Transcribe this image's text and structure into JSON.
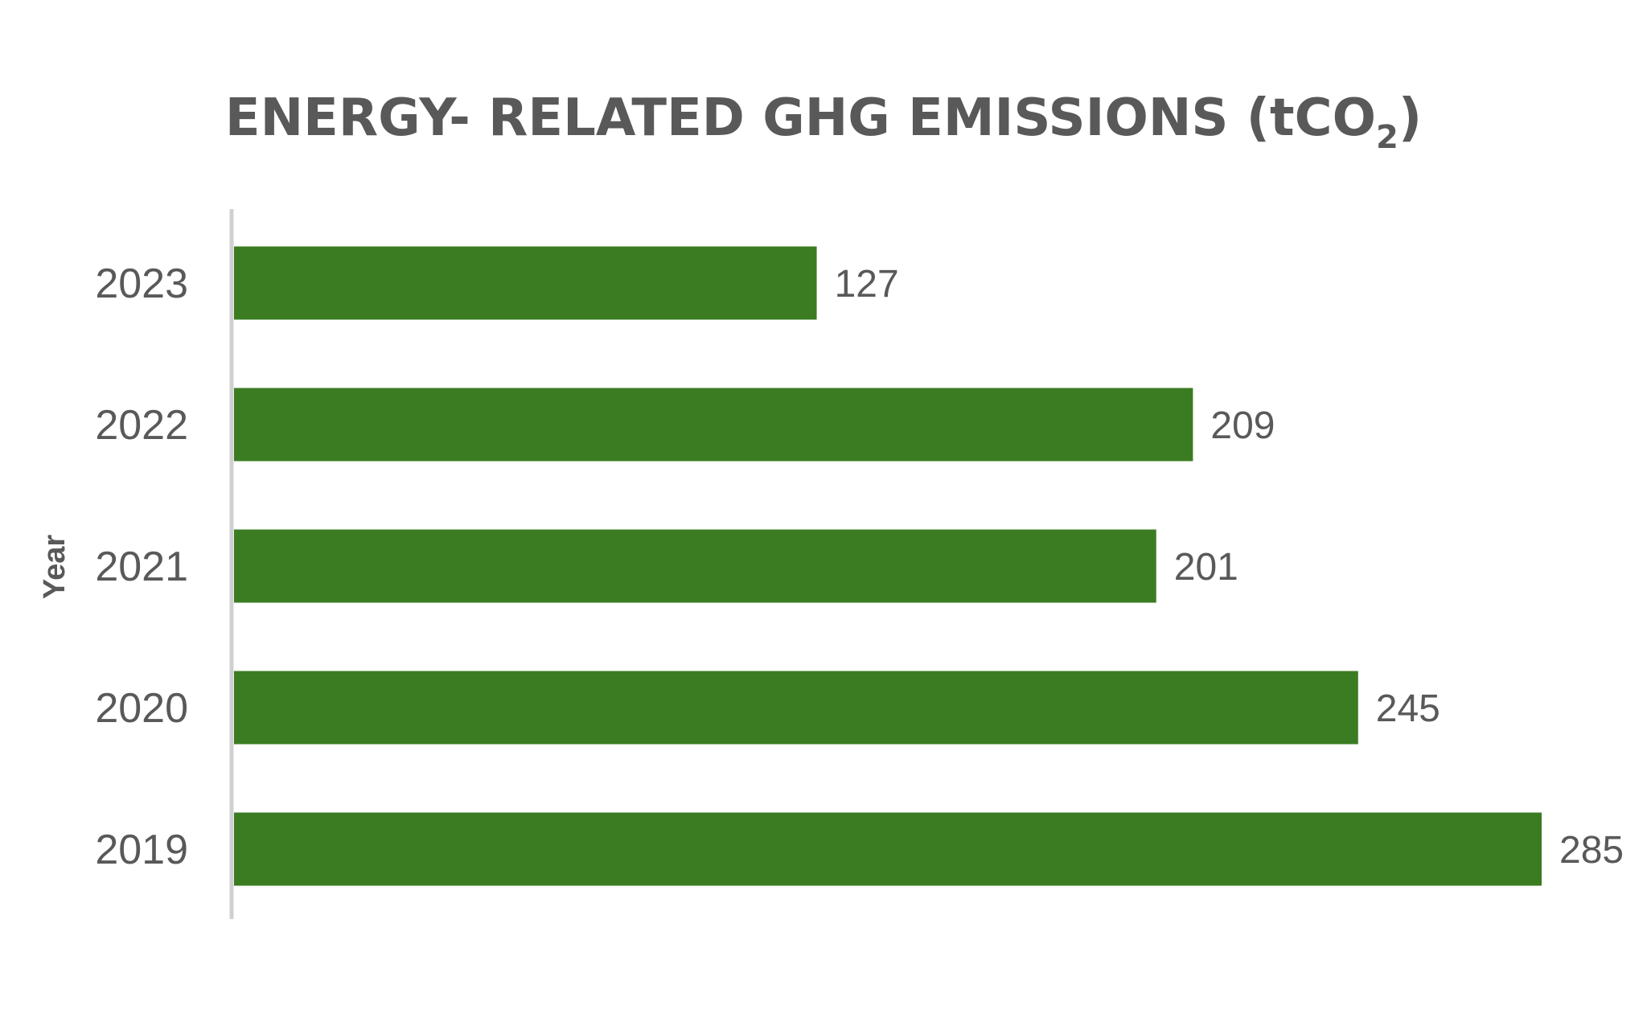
{
  "chart_data": {
    "type": "bar",
    "orientation": "horizontal",
    "title": {
      "main": "ENERGY- RELATED GHG EMISSIONS (tCO",
      "subscript": "2",
      "suffix": ")"
    },
    "ylabel": "Year",
    "xlabel": "",
    "categories": [
      "2023",
      "2022",
      "2021",
      "2020",
      "2019"
    ],
    "values": [
      127,
      209,
      201,
      245,
      285
    ],
    "xlim": [
      0,
      285
    ],
    "grid": false,
    "legend": "none",
    "colors": {
      "bar": "#3b7c23",
      "text": "#595959",
      "axis": "#d0d0d0"
    }
  }
}
